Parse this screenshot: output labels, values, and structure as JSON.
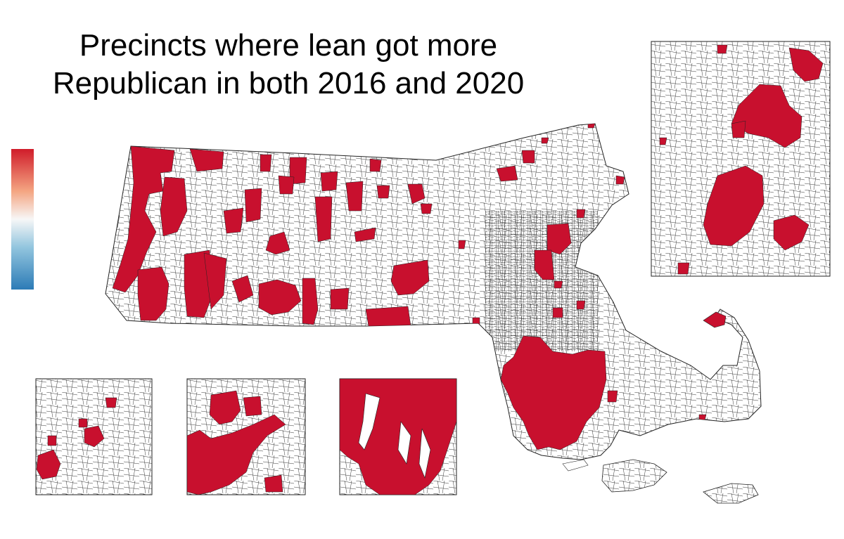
{
  "title": {
    "line1": "Precincts where lean got more",
    "line2": "Republican in both 2016 and 2020"
  },
  "legend": {
    "gradient_top": "#d01c2a",
    "gradient_mid": "#f7f7f7",
    "gradient_bottom": "#2c7bb6"
  },
  "colors": {
    "highlight": "#c8102e",
    "boundary": "#222222",
    "background": "#ffffff"
  },
  "map": {
    "main_region": "Massachusetts precincts",
    "insets": [
      "Boston area inset",
      "Western inset",
      "Central inset",
      "Southeast inset"
    ]
  }
}
